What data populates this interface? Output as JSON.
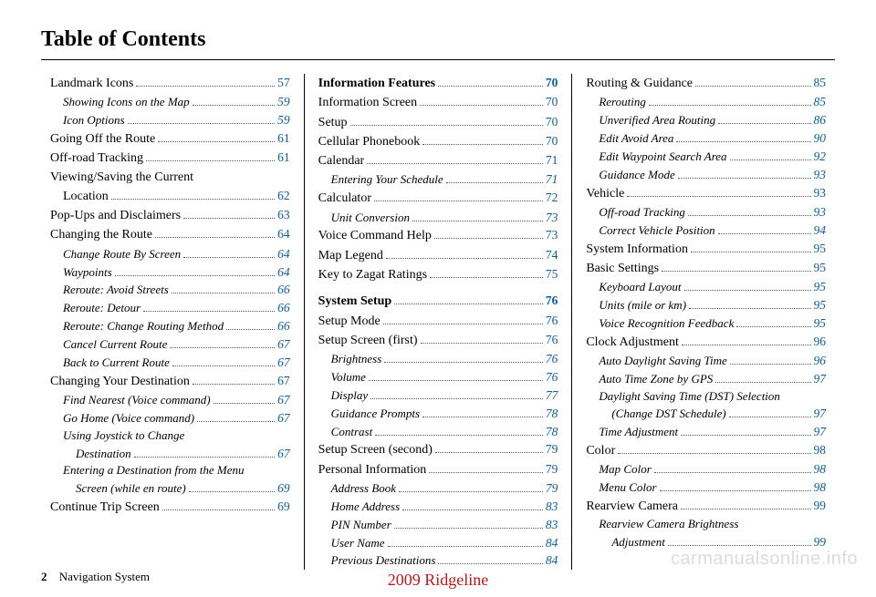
{
  "title": "Table of Contents",
  "columns": [
    {
      "entries": [
        {
          "level": "l1",
          "label": "Landmark Icons",
          "page": "57"
        },
        {
          "level": "l2",
          "label": "Showing Icons on the Map",
          "page": "59"
        },
        {
          "level": "l2",
          "label": "Icon Options",
          "page": "59"
        },
        {
          "level": "l1",
          "label": "Going Off the Route",
          "page": "61"
        },
        {
          "level": "l1",
          "label": "Off-road Tracking",
          "page": "61"
        },
        {
          "level": "l1",
          "label": "Viewing/Saving the Current",
          "cont": "Location",
          "page": "62"
        },
        {
          "level": "l1",
          "label": "Pop-Ups and Disclaimers",
          "page": "63"
        },
        {
          "level": "l1",
          "label": "Changing the Route",
          "page": "64"
        },
        {
          "level": "l2",
          "label": "Change Route By Screen",
          "page": "64"
        },
        {
          "level": "l2",
          "label": "Waypoints",
          "page": "64"
        },
        {
          "level": "l2",
          "label": "Reroute: Avoid Streets",
          "page": "66"
        },
        {
          "level": "l2",
          "label": "Reroute: Detour",
          "page": "66"
        },
        {
          "level": "l2",
          "label": "Reroute: Change Routing Method",
          "page": "66"
        },
        {
          "level": "l2",
          "label": "Cancel Current Route",
          "page": "67"
        },
        {
          "level": "l2",
          "label": "Back to Current Route",
          "page": "67"
        },
        {
          "level": "l1",
          "label": "Changing Your Destination",
          "page": "67"
        },
        {
          "level": "l2",
          "label": "Find Nearest (Voice command)",
          "page": "67"
        },
        {
          "level": "l2",
          "label": "Go Home (Voice command)",
          "page": "67"
        },
        {
          "level": "l2",
          "label": "Using Joystick to Change",
          "cont": "Destination",
          "page": "67"
        },
        {
          "level": "l2",
          "label": "Entering a Destination from the Menu",
          "cont": "Screen (while en route)",
          "page": "69"
        },
        {
          "level": "l1",
          "label": "Continue Trip Screen",
          "page": "69"
        }
      ]
    },
    {
      "entries": [
        {
          "level": "section",
          "label": "Information Features",
          "page": "70"
        },
        {
          "level": "l1",
          "label": "Information Screen",
          "page": "70"
        },
        {
          "level": "l1",
          "label": "Setup",
          "page": "70"
        },
        {
          "level": "l1",
          "label": "Cellular Phonebook",
          "page": "70"
        },
        {
          "level": "l1",
          "label": "Calendar",
          "page": "71"
        },
        {
          "level": "l2",
          "label": "Entering Your Schedule",
          "page": "71"
        },
        {
          "level": "l1",
          "label": "Calculator",
          "page": "72"
        },
        {
          "level": "l2",
          "label": "Unit Conversion",
          "page": "73"
        },
        {
          "level": "l1",
          "label": "Voice Command Help",
          "page": "73"
        },
        {
          "level": "l1",
          "label": "Map Legend",
          "page": "74"
        },
        {
          "level": "l1",
          "label": "Key to Zagat Ratings",
          "page": "75"
        },
        {
          "level": "spacer"
        },
        {
          "level": "section",
          "label": "System Setup",
          "page": "76"
        },
        {
          "level": "l1",
          "label": "Setup Mode",
          "page": "76"
        },
        {
          "level": "l1",
          "label": "Setup Screen (first)",
          "page": "76"
        },
        {
          "level": "l2",
          "label": "Brightness",
          "page": "76"
        },
        {
          "level": "l2",
          "label": "Volume",
          "page": "76"
        },
        {
          "level": "l2",
          "label": "Display",
          "page": "77"
        },
        {
          "level": "l2",
          "label": "Guidance Prompts",
          "page": "78"
        },
        {
          "level": "l2",
          "label": "Contrast",
          "page": "78"
        },
        {
          "level": "l1",
          "label": "Setup Screen (second)",
          "page": "79"
        },
        {
          "level": "l1",
          "label": "Personal Information",
          "page": "79"
        },
        {
          "level": "l2",
          "label": "Address Book",
          "page": "79"
        },
        {
          "level": "l2",
          "label": "Home Address",
          "page": "83"
        },
        {
          "level": "l2",
          "label": "PIN Number",
          "page": "83"
        },
        {
          "level": "l2",
          "label": "User Name",
          "page": "84"
        },
        {
          "level": "l2",
          "label": "Previous Destinations",
          "page": "84"
        }
      ]
    },
    {
      "entries": [
        {
          "level": "l1",
          "label": "Routing & Guidance",
          "page": "85"
        },
        {
          "level": "l2",
          "label": "Rerouting",
          "page": "85"
        },
        {
          "level": "l2",
          "label": "Unverified Area Routing",
          "page": "86"
        },
        {
          "level": "l2",
          "label": "Edit Avoid Area",
          "page": "90"
        },
        {
          "level": "l2",
          "label": "Edit Waypoint Search Area",
          "page": "92"
        },
        {
          "level": "l2",
          "label": "Guidance Mode",
          "page": "93"
        },
        {
          "level": "l1",
          "label": "Vehicle",
          "page": "93"
        },
        {
          "level": "l2",
          "label": "Off-road Tracking",
          "page": "93"
        },
        {
          "level": "l2",
          "label": "Correct Vehicle Position",
          "page": "94"
        },
        {
          "level": "l1",
          "label": "System Information",
          "page": "95"
        },
        {
          "level": "l1",
          "label": "Basic Settings",
          "page": "95"
        },
        {
          "level": "l2",
          "label": "Keyboard Layout",
          "page": "95"
        },
        {
          "level": "l2",
          "label": "Units (mile or km)",
          "page": "95"
        },
        {
          "level": "l2",
          "label": "Voice Recognition Feedback",
          "page": "95"
        },
        {
          "level": "l1",
          "label": "Clock Adjustment",
          "page": "96"
        },
        {
          "level": "l2",
          "label": "Auto Daylight Saving Time",
          "page": "96"
        },
        {
          "level": "l2",
          "label": "Auto Time Zone by GPS",
          "page": "97"
        },
        {
          "level": "l2",
          "label": "Daylight Saving Time (DST) Selection",
          "cont": "(Change DST Schedule)",
          "page": "97"
        },
        {
          "level": "l2",
          "label": "Time Adjustment",
          "page": "97"
        },
        {
          "level": "l1",
          "label": "Color",
          "page": "98"
        },
        {
          "level": "l2",
          "label": "Map Color",
          "page": "98"
        },
        {
          "level": "l2",
          "label": "Menu Color",
          "page": "98"
        },
        {
          "level": "l1",
          "label": "Rearview Camera",
          "page": "99"
        },
        {
          "level": "l2",
          "label": "Rearview Camera Brightness",
          "cont": "Adjustment",
          "page": "99"
        }
      ]
    }
  ],
  "footer": {
    "pageNum": "2",
    "section": "Navigation System",
    "center": "2009 Ridgeline",
    "watermark": "carmanualsonline.info"
  }
}
